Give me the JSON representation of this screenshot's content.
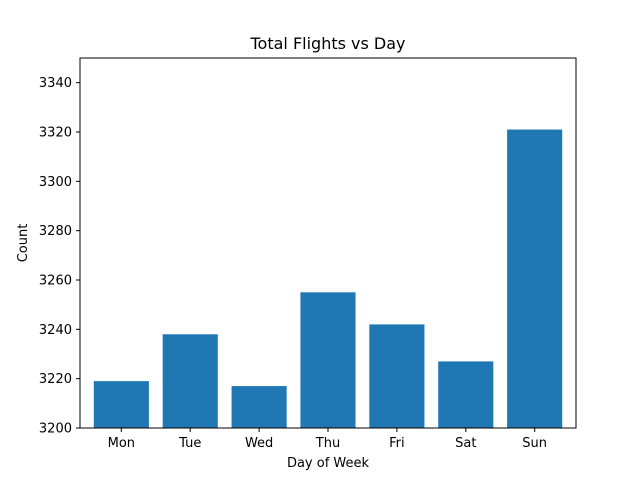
{
  "chart_data": {
    "type": "bar",
    "title": "Total Flights vs Day",
    "xlabel": "Day of Week",
    "ylabel": "Count",
    "categories": [
      "Mon",
      "Tue",
      "Wed",
      "Thu",
      "Fri",
      "Sat",
      "Sun"
    ],
    "values": [
      3219,
      3238,
      3217,
      3255,
      3242,
      3227,
      3321
    ],
    "ylim": [
      3200,
      3350
    ],
    "yticks": [
      3200,
      3220,
      3240,
      3260,
      3280,
      3300,
      3320,
      3340
    ],
    "grid": false,
    "bar_color": "#1f77b4"
  }
}
